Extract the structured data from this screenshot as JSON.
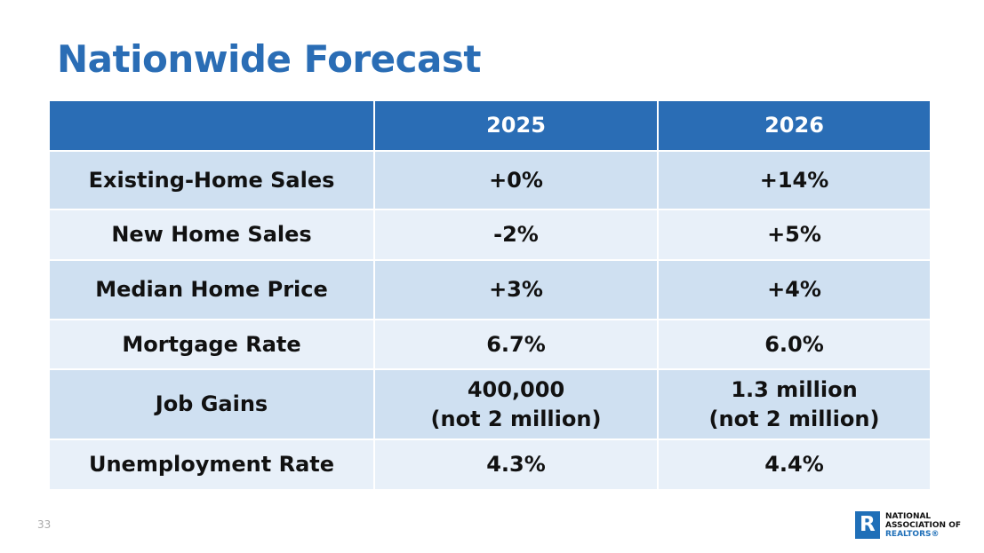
{
  "title": "Nationwide Forecast",
  "table": {
    "headers": [
      "",
      "2025",
      "2026"
    ],
    "rows": [
      {
        "label": "Existing-Home Sales",
        "y2025": "+0%",
        "y2026": "+14%"
      },
      {
        "label": "New Home Sales",
        "y2025": "-2%",
        "y2026": "+5%"
      },
      {
        "label": "Median Home Price",
        "y2025": "+3%",
        "y2026": "+4%"
      },
      {
        "label": "Mortgage Rate",
        "y2025": "6.7%",
        "y2026": "6.0%"
      },
      {
        "label": "Job Gains",
        "y2025": "400,000",
        "y2025_note": "(not 2 million)",
        "y2026": "1.3 million",
        "y2026_note": "(not 2 million)"
      },
      {
        "label": "Unemployment Rate",
        "y2025": "4.3%",
        "y2026": "4.4%"
      }
    ]
  },
  "slide_number": "33",
  "logo": {
    "line1": "NATIONAL",
    "line2": "ASSOCIATION OF",
    "line3": "REALTORS®",
    "mark": "R"
  },
  "colors": {
    "accent": "#2a6db5",
    "row_dark": "#cfe0f1",
    "row_light": "#e8f0f9"
  }
}
